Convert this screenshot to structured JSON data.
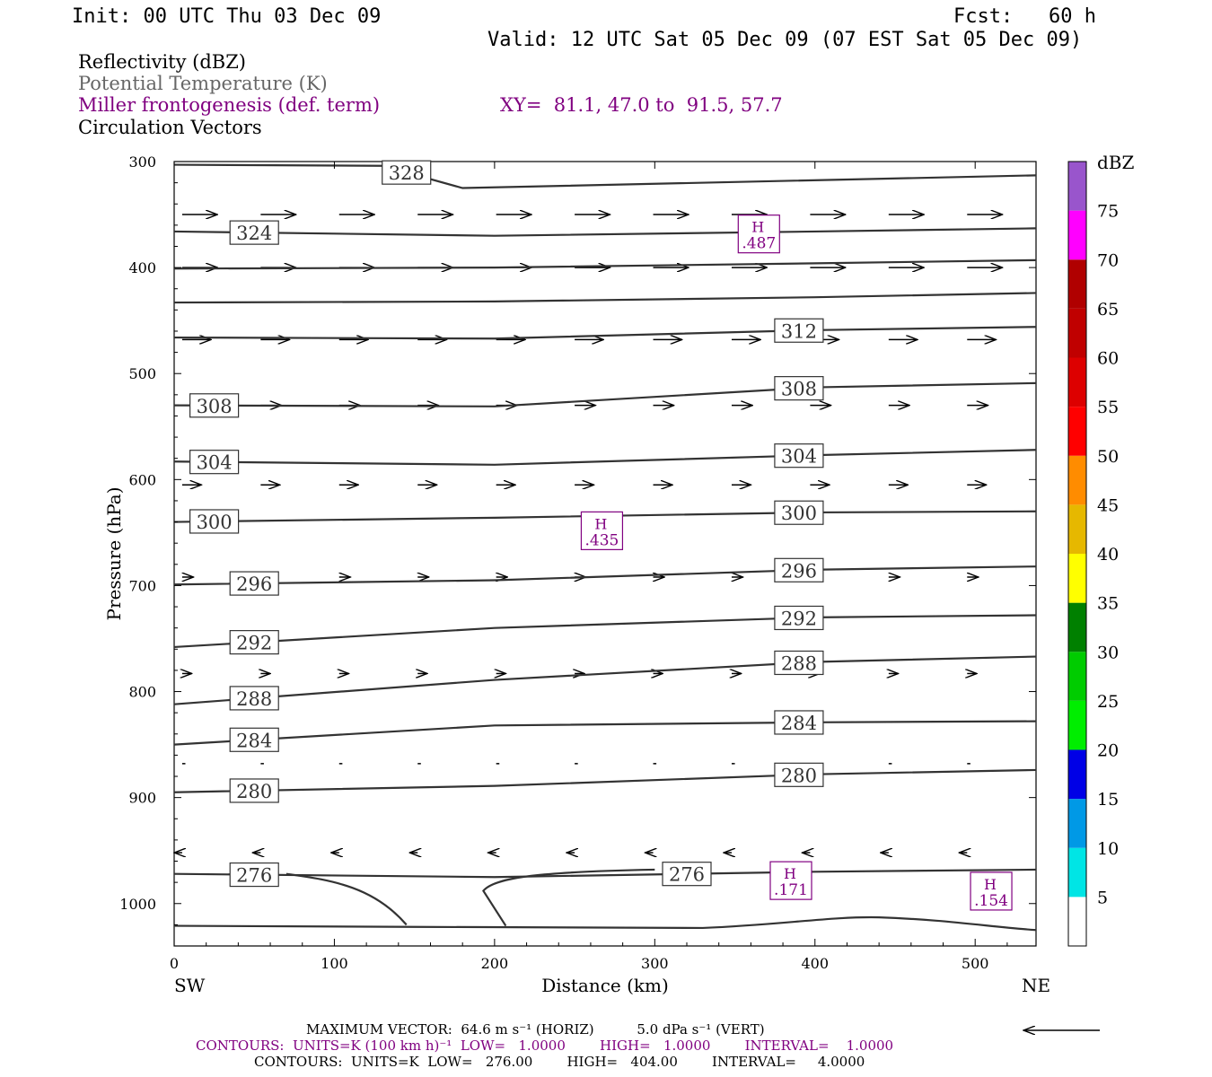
{
  "header": {
    "init": "Init: 00 UTC Thu 03 Dec 09",
    "fcst": "Fcst:   60 h",
    "valid": "Valid: 12 UTC Sat 05 Dec 09 (07 EST Sat 05 Dec 09)"
  },
  "fields": {
    "reflectivity": "Reflectivity (dBZ)",
    "theta": "Potential Temperature (K)",
    "miller": "Miller frontogenesis (def. term)",
    "xy": "XY=  81.1, 47.0 to  91.5, 57.7",
    "vectors": "Circulation Vectors"
  },
  "colors": {
    "purple": "#800080",
    "contour": "#333333",
    "scale": [
      {
        "label": "",
        "color": "#ffffff"
      },
      {
        "label": "5",
        "color": "#00e5e5"
      },
      {
        "label": "10",
        "color": "#0099e6"
      },
      {
        "label": "15",
        "color": "#0000e6"
      },
      {
        "label": "20",
        "color": "#00ee00"
      },
      {
        "label": "25",
        "color": "#00cc00"
      },
      {
        "label": "30",
        "color": "#008000"
      },
      {
        "label": "35",
        "color": "#ffff00"
      },
      {
        "label": "40",
        "color": "#e6b800"
      },
      {
        "label": "45",
        "color": "#ff8c00"
      },
      {
        "label": "50",
        "color": "#ff0000"
      },
      {
        "label": "55",
        "color": "#dd0000"
      },
      {
        "label": "60",
        "color": "#c00000"
      },
      {
        "label": "65",
        "color": "#b00000"
      },
      {
        "label": "70",
        "color": "#ff00ff"
      },
      {
        "label": "75",
        "color": "#9955cc"
      },
      {
        "label": "",
        "color": "#ffffff"
      }
    ],
    "scale_unit": "dBZ"
  },
  "chart_data": {
    "type": "contour",
    "xlabel": "Distance (km)",
    "ylabel": "Pressure (hPa)",
    "xlim": [
      0,
      538
    ],
    "ylim": [
      1040,
      300
    ],
    "xticks": [
      0,
      100,
      200,
      300,
      400,
      500
    ],
    "yticks": [
      300,
      400,
      500,
      600,
      700,
      800,
      900,
      1000
    ],
    "left_label": "SW",
    "right_label": "NE",
    "isentropes": [
      {
        "label": "328",
        "x": [
          0,
          130,
          180,
          538
        ],
        "p": [
          303,
          304,
          325,
          313
        ]
      },
      {
        "label": "324",
        "x": [
          0,
          200,
          400,
          538
        ],
        "p": [
          366,
          370,
          366,
          363
        ]
      },
      {
        "label": "",
        "x": [
          0,
          200,
          400,
          538
        ],
        "p": [
          401,
          400,
          396,
          393
        ]
      },
      {
        "label": "",
        "x": [
          0,
          200,
          400,
          538
        ],
        "p": [
          433,
          432,
          428,
          424
        ]
      },
      {
        "label": "312",
        "x": [
          0,
          200,
          400,
          538
        ],
        "p": [
          466,
          467,
          459,
          456
        ]
      },
      {
        "label": "308",
        "x": [
          0,
          200,
          400,
          538
        ],
        "p": [
          530,
          531,
          513,
          509
        ]
      },
      {
        "label": "304",
        "x": [
          0,
          200,
          400,
          538
        ],
        "p": [
          583,
          586,
          577,
          572
        ]
      },
      {
        "label": "300",
        "x": [
          0,
          200,
          400,
          538
        ],
        "p": [
          640,
          636,
          631,
          630
        ]
      },
      {
        "label": "296",
        "x": [
          0,
          200,
          400,
          538
        ],
        "p": [
          699,
          695,
          685,
          682
        ]
      },
      {
        "label": "292",
        "x": [
          0,
          200,
          400,
          538
        ],
        "p": [
          758,
          740,
          730,
          728
        ]
      },
      {
        "label": "288",
        "x": [
          0,
          200,
          400,
          538
        ],
        "p": [
          812,
          789,
          772,
          767
        ]
      },
      {
        "label": "284",
        "x": [
          0,
          200,
          400,
          538
        ],
        "p": [
          850,
          832,
          829,
          828
        ]
      },
      {
        "label": "280",
        "x": [
          0,
          200,
          400,
          538
        ],
        "p": [
          895,
          889,
          878,
          874
        ]
      },
      {
        "label": "276",
        "x": [
          0,
          200,
          400,
          538
        ],
        "p": [
          972,
          975,
          970,
          968
        ]
      }
    ],
    "frontogenesis_maxima": [
      {
        "mark": "H",
        "value": ".487",
        "x": 365,
        "p": 370
      },
      {
        "mark": "H",
        "value": ".435",
        "x": 267,
        "p": 650
      },
      {
        "mark": "H",
        "value": ".171",
        "x": 385,
        "p": 980
      },
      {
        "mark": "H",
        "value": ".154",
        "x": 510,
        "p": 990
      }
    ]
  },
  "footer": {
    "max_vector": "MAXIMUM VECTOR:  64.6 m s⁻¹ (HORIZ)          5.0 dPa s⁻¹ (VERT)",
    "contours1": "CONTOURS:  UNITS=K (100 km h)⁻¹  LOW=   1.0000        HIGH=   1.0000        INTERVAL=    1.0000",
    "contours2": "CONTOURS:  UNITS=K  LOW=   276.00        HIGH=   404.00        INTERVAL=     4.0000"
  }
}
